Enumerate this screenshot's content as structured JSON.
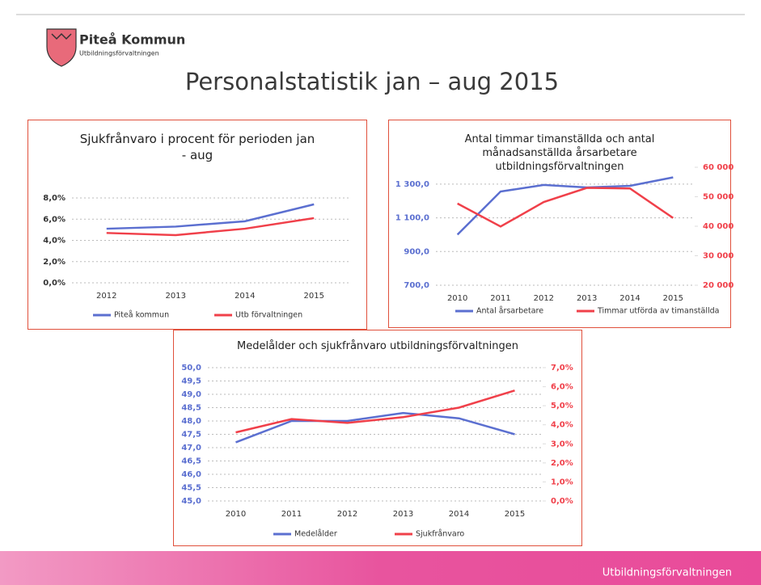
{
  "header": {
    "org": "Piteå Kommun",
    "dept": "Utbildningsförvaltningen",
    "title": "Personalstatistik jan – aug 2015"
  },
  "footer": "Utbildningsförvaltningen",
  "chart_data": [
    {
      "type": "line",
      "title": "Sjukfrånvaro i procent för perioden jan - aug",
      "categories": [
        "2012",
        "2013",
        "2014",
        "2015"
      ],
      "series": [
        {
          "name": "Piteå kommun",
          "color": "#5b6fd0",
          "values": [
            5.1,
            5.3,
            5.8,
            7.4
          ]
        },
        {
          "name": "Utb förvaltningen",
          "color": "#f0404a",
          "values": [
            4.7,
            4.5,
            5.1,
            6.1
          ]
        }
      ],
      "ylim": [
        0,
        8
      ],
      "yticks": [
        {
          "value": 0,
          "label": "0,0%"
        },
        {
          "value": 2,
          "label": "2,0%"
        },
        {
          "value": 4,
          "label": "4,0%"
        },
        {
          "value": 6,
          "label": "6,0%"
        },
        {
          "value": 8,
          "label": "8,0%"
        }
      ],
      "grid": true
    },
    {
      "type": "line",
      "title": "Antal timmar timanställda och antal månadsanställda årsarbetare utbildningsförvaltningen",
      "categories": [
        "2010",
        "2011",
        "2012",
        "2013",
        "2014",
        "2015"
      ],
      "series": [
        {
          "name": "Antal årsarbetare",
          "color": "#5b6fd0",
          "values": [
            1000,
            1256,
            1295,
            1280,
            1290,
            1340
          ]
        },
        {
          "name": "Timmar utförda av timanställda",
          "color": "#f0404a",
          "axis": "y2",
          "values": [
            47700,
            39900,
            48200,
            53000,
            52800,
            42800
          ]
        }
      ],
      "ylim": [
        700,
        1400
      ],
      "yticks": [
        {
          "value": 700,
          "label": "700,0"
        },
        {
          "value": 900,
          "label": "900,0"
        },
        {
          "value": 1100,
          "label": "1 100,0"
        },
        {
          "value": 1300,
          "label": "1 300,0"
        }
      ],
      "y2lim": [
        20000,
        60000
      ],
      "y2ticks": [
        {
          "value": 20000,
          "label": "20 000"
        },
        {
          "value": 30000,
          "label": "30 000"
        },
        {
          "value": 40000,
          "label": "40 000"
        },
        {
          "value": 50000,
          "label": "50 000"
        },
        {
          "value": 60000,
          "label": "60 000"
        }
      ],
      "grid": true
    },
    {
      "type": "line",
      "title": "Medelålder och sjukfrånvaro utbildningsförvaltningen",
      "categories": [
        "2010",
        "2011",
        "2012",
        "2013",
        "2014",
        "2015"
      ],
      "series": [
        {
          "name": "Medelålder",
          "color": "#5b6fd0",
          "values": [
            47.2,
            48.0,
            48.0,
            48.3,
            48.1,
            47.5
          ]
        },
        {
          "name": "Sjukfrånvaro",
          "color": "#f0404a",
          "axis": "y2",
          "values": [
            3.6,
            4.3,
            4.1,
            4.4,
            4.9,
            5.8
          ]
        }
      ],
      "ylim": [
        45,
        50
      ],
      "yticks": [
        {
          "value": 45,
          "label": "45,0"
        },
        {
          "value": 45.5,
          "label": "45,5"
        },
        {
          "value": 46,
          "label": "46,0"
        },
        {
          "value": 46.5,
          "label": "46,5"
        },
        {
          "value": 47,
          "label": "47,0"
        },
        {
          "value": 47.5,
          "label": "47,5"
        },
        {
          "value": 48,
          "label": "48,0"
        },
        {
          "value": 48.5,
          "label": "48,5"
        },
        {
          "value": 49,
          "label": "49,0"
        },
        {
          "value": 49.5,
          "label": "49,5"
        },
        {
          "value": 50,
          "label": "50,0"
        }
      ],
      "y2lim": [
        0,
        7
      ],
      "y2ticks": [
        {
          "value": 0,
          "label": "0,0%"
        },
        {
          "value": 1,
          "label": "1,0%"
        },
        {
          "value": 2,
          "label": "2,0%"
        },
        {
          "value": 3,
          "label": "3,0%"
        },
        {
          "value": 4,
          "label": "4,0%"
        },
        {
          "value": 5,
          "label": "5,0%"
        },
        {
          "value": 6,
          "label": "6,0%"
        },
        {
          "value": 7,
          "label": "7,0%"
        }
      ],
      "grid": true
    }
  ]
}
